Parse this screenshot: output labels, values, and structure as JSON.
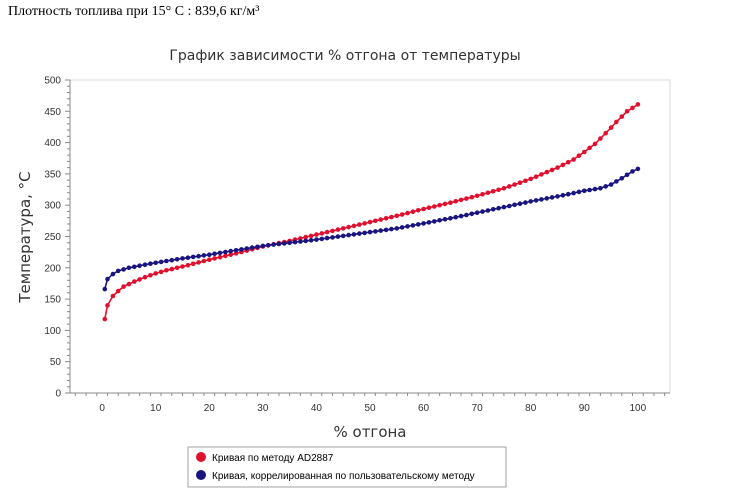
{
  "header": {
    "density_text": "Плотность топлива при 15° С : 839,6 кг/м³"
  },
  "chart_data": {
    "type": "line",
    "title": "График зависимости % отгона от температуры",
    "xlabel": "% отгона",
    "ylabel": "Температура, °С",
    "xlim": [
      -6,
      106
    ],
    "ylim": [
      0,
      500
    ],
    "x_ticks": [
      0,
      10,
      20,
      30,
      40,
      50,
      60,
      70,
      80,
      90,
      100
    ],
    "y_ticks": [
      0,
      50,
      100,
      150,
      200,
      250,
      300,
      350,
      400,
      450,
      500
    ],
    "grid": false,
    "legend_position": "bottom",
    "series": [
      {
        "name": "Кривая по методу AD2887",
        "color": "#e0102e",
        "anchors": [
          [
            0.5,
            118
          ],
          [
            1,
            140
          ],
          [
            2,
            155
          ],
          [
            3,
            163
          ],
          [
            4,
            170
          ],
          [
            6,
            178
          ],
          [
            8,
            185
          ],
          [
            10,
            191
          ],
          [
            12,
            196
          ],
          [
            15,
            202
          ],
          [
            20,
            213
          ],
          [
            25,
            223
          ],
          [
            30,
            234
          ],
          [
            35,
            243
          ],
          [
            40,
            253
          ],
          [
            45,
            263
          ],
          [
            50,
            273
          ],
          [
            55,
            283
          ],
          [
            60,
            294
          ],
          [
            65,
            304
          ],
          [
            70,
            315
          ],
          [
            75,
            327
          ],
          [
            80,
            342
          ],
          [
            85,
            360
          ],
          [
            88,
            373
          ],
          [
            90,
            385
          ],
          [
            92,
            398
          ],
          [
            94,
            415
          ],
          [
            96,
            433
          ],
          [
            98,
            450
          ],
          [
            100,
            461
          ]
        ]
      },
      {
        "name": "Кривая, коррелированная по пользовательскому методу",
        "color": "#1a1480",
        "anchors": [
          [
            0.5,
            166
          ],
          [
            1,
            182
          ],
          [
            2,
            190
          ],
          [
            3,
            195
          ],
          [
            5,
            200
          ],
          [
            8,
            205
          ],
          [
            10,
            208
          ],
          [
            15,
            215
          ],
          [
            20,
            221
          ],
          [
            25,
            228
          ],
          [
            30,
            235
          ],
          [
            35,
            240
          ],
          [
            40,
            245
          ],
          [
            45,
            251
          ],
          [
            50,
            257
          ],
          [
            55,
            263
          ],
          [
            60,
            271
          ],
          [
            65,
            279
          ],
          [
            70,
            288
          ],
          [
            75,
            297
          ],
          [
            80,
            306
          ],
          [
            85,
            314
          ],
          [
            90,
            323
          ],
          [
            93,
            327
          ],
          [
            95,
            333
          ],
          [
            97,
            343
          ],
          [
            99,
            354
          ],
          [
            100,
            358
          ]
        ]
      }
    ]
  }
}
